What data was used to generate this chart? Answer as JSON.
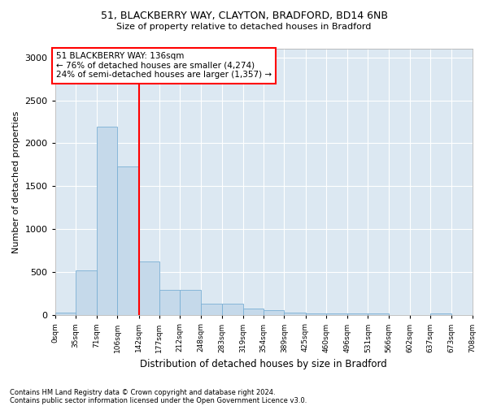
{
  "title1": "51, BLACKBERRY WAY, CLAYTON, BRADFORD, BD14 6NB",
  "title2": "Size of property relative to detached houses in Bradford",
  "xlabel": "Distribution of detached houses by size in Bradford",
  "ylabel": "Number of detached properties",
  "footnote1": "Contains HM Land Registry data © Crown copyright and database right 2024.",
  "footnote2": "Contains public sector information licensed under the Open Government Licence v3.0.",
  "bin_edges": [
    0,
    35,
    71,
    106,
    142,
    177,
    212,
    248,
    283,
    319,
    354,
    389,
    425,
    460,
    496,
    531,
    566,
    602,
    637,
    673,
    708
  ],
  "bin_labels": [
    "0sqm",
    "35sqm",
    "71sqm",
    "106sqm",
    "142sqm",
    "177sqm",
    "212sqm",
    "248sqm",
    "283sqm",
    "319sqm",
    "354sqm",
    "389sqm",
    "425sqm",
    "460sqm",
    "496sqm",
    "531sqm",
    "566sqm",
    "602sqm",
    "637sqm",
    "673sqm",
    "708sqm"
  ],
  "counts": [
    30,
    520,
    2190,
    1730,
    630,
    295,
    295,
    130,
    130,
    75,
    55,
    35,
    25,
    25,
    20,
    20,
    5,
    5,
    20,
    5,
    0
  ],
  "bar_color": "#c5d9ea",
  "bar_edgecolor": "#7aafd4",
  "redline_x": 142,
  "annotation_title": "51 BLACKBERRY WAY: 136sqm",
  "annotation_line1": "← 76% of detached houses are smaller (4,274)",
  "annotation_line2": "24% of semi-detached houses are larger (1,357) →",
  "ylim": [
    0,
    3100
  ],
  "yticks": [
    0,
    500,
    1000,
    1500,
    2000,
    2500,
    3000
  ],
  "fig_facecolor": "#ffffff",
  "ax_facecolor": "#dce8f2"
}
